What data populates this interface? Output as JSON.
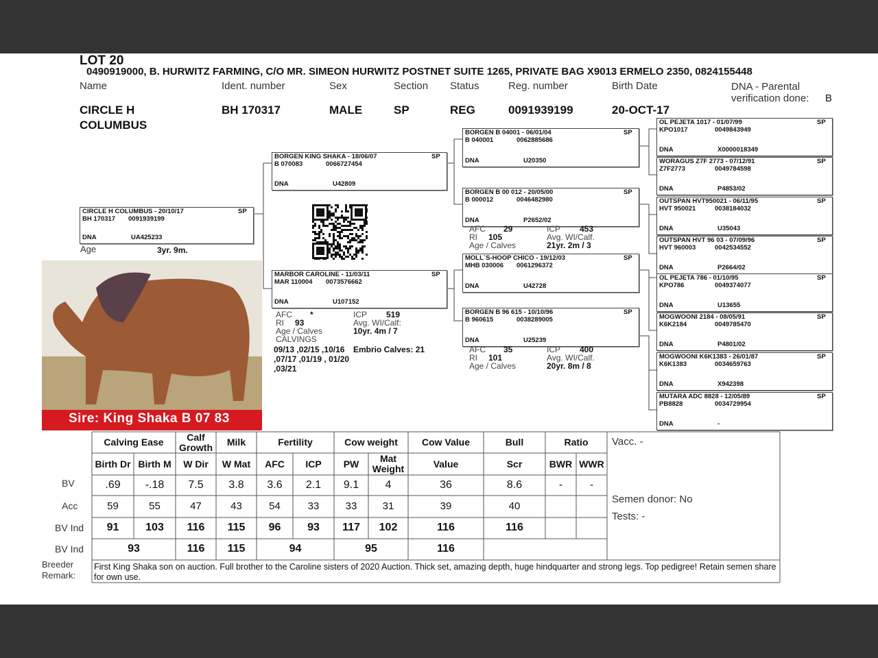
{
  "header": {
    "lot": "LOT 20",
    "owner": "0490919000, B. HURWITZ FARMING, C/O MR. SIMEON HURWITZ POSTNET SUITE 1265, PRIVATE BAG X9013 ERMELO 2350, 0824155448"
  },
  "fields": {
    "labels": [
      "Name",
      "Ident. number",
      "Sex",
      "Section",
      "Status",
      "Reg. number",
      "Birth Date",
      "DNA - Parental verification done:"
    ],
    "values": [
      "CIRCLE H COLUMBUS",
      "BH  170317",
      "MALE",
      "SP",
      "REG",
      "0091939199",
      "20-OCT-17",
      "B"
    ]
  },
  "pedigree": [
    {
      "title": "CIRCLE H COLUMBUS - 20/10/17",
      "section": "SP",
      "ident": "BH  170317",
      "reg": "0091939199",
      "dna_label": "DNA",
      "dna": "UA425233"
    },
    {
      "title": "BORGEN KING SHAKA - 18/06/07",
      "section": "SP",
      "ident": "B  070083",
      "reg": "0066727454",
      "dna_label": "DNA",
      "dna": "U42809"
    },
    {
      "title": "MARBOR CAROLINE - 11/03/11",
      "section": "SP",
      "ident": "MAR 110004",
      "reg": "0073576662",
      "dna_label": "DNA",
      "dna": "U107152"
    },
    {
      "title": "BORGEN B 04001 - 06/01/04",
      "section": "SP",
      "ident": "B  040001",
      "reg": "0062885686",
      "dna_label": "DNA",
      "dna": "U20350"
    },
    {
      "title": "BORGEN B 00 012 - 20/05/00",
      "section": "SP",
      "ident": "B  000012",
      "reg": "0046482980",
      "dna_label": "DNA",
      "dna": "P2652/02"
    },
    {
      "title": "MOLL`S-HOOP CHICO - 19/12/03",
      "section": "SP",
      "ident": "MHB 030006",
      "reg": "0061296372",
      "dna_label": "DNA",
      "dna": "U42728"
    },
    {
      "title": "BORGEN B 96 615 - 10/10/96",
      "section": "SP",
      "ident": "B  960615",
      "reg": "0038289005",
      "dna_label": "DNA",
      "dna": "U25239"
    },
    {
      "title": "OL PEJETA 1017 - 01/07/99",
      "section": "SP",
      "ident": "KPO1017",
      "reg": "0049843949",
      "dna_label": "DNA",
      "dna": "X0000018349"
    },
    {
      "title": "WORAGUS Z7F 2773 - 07/12/91",
      "section": "SP",
      "ident": "Z7F2773",
      "reg": "0049784598",
      "dna_label": "DNA",
      "dna": "P4853/02"
    },
    {
      "title": "OUTSPAN HVT950021 - 06/11/95",
      "section": "SP",
      "ident": "HVT 950021",
      "reg": "0038184032",
      "dna_label": "DNA",
      "dna": "U35043"
    },
    {
      "title": "OUTSPAN HVT 96 03 - 07/09/96",
      "section": "SP",
      "ident": "HVT 960003",
      "reg": "0042534552",
      "dna_label": "DNA",
      "dna": "P2664/02"
    },
    {
      "title": "OL PEJETA 786 - 01/10/95",
      "section": "SP",
      "ident": "KPO786",
      "reg": "0049374077",
      "dna_label": "DNA",
      "dna": "U13655"
    },
    {
      "title": "MOGWOONI 2184 - 08/05/91",
      "section": "SP",
      "ident": "K6K2184",
      "reg": "0049785470",
      "dna_label": "DNA",
      "dna": "P4801/02"
    },
    {
      "title": "MOGWOONI K6K1383 - 26/01/87",
      "section": "SP",
      "ident": "K6K1383",
      "reg": "0034659763",
      "dna_label": "DNA",
      "dna": "X942398"
    },
    {
      "title": "MUTARA ADC 8828 - 12/05/89",
      "section": "SP",
      "ident": "PB8828",
      "reg": "0034729954",
      "dna_label": "DNA",
      "dna": "-"
    }
  ],
  "age": {
    "label": "Age",
    "value": "3yr. 9m."
  },
  "stats": [
    {
      "afc_label": "AFC",
      "afc": "*",
      "icp_label": "ICP",
      "icp": "519",
      "ri_label": "RI",
      "ri": "93",
      "wi_label": "Avg. WI/Calf:",
      "age_label": "Age / Calves",
      "age": "10yr. 4m  / 7",
      "calvings_label": "CALVINGS",
      "calvings": "09/13 ,02/15 ,10/16 ,07/17 ,01/19 , 01/20 ,03/21",
      "embrio": "Embrio Calves: 21"
    },
    {
      "afc_label": "AFC",
      "afc": "29",
      "icp_label": "ICP",
      "icp": "453",
      "ri_label": "RI",
      "ri": "105",
      "wi_label": "Avg. WI/Calf.",
      "age_label": "Age / Calves",
      "age": "21yr. 2m  / 3"
    },
    {
      "afc_label": "AFC",
      "afc": "35",
      "icp_label": "ICP",
      "icp": "400",
      "ri_label": "RI",
      "ri": "101",
      "wi_label": "Avg. WI/Calf.",
      "age_label": "Age / Calves",
      "age": "20yr. 8m  / 8"
    }
  ],
  "photo_caption": "Sire:  King Shaka B 07 83",
  "table": {
    "groups": [
      "Calving Ease",
      "Calf Growth",
      "Milk",
      "Fertility",
      "Cow weight",
      "Cow Value",
      "Bull",
      "Ratio"
    ],
    "columns": [
      "Birth Dr",
      "Birth M",
      "W Dir",
      "W Mat",
      "AFC",
      "ICP",
      "PW",
      "Mat Weight",
      "Value",
      "Scr",
      "BWR",
      "WWR"
    ],
    "row_labels": [
      "BV",
      "Acc",
      "BV Ind",
      "BV Ind"
    ],
    "bv": [
      ".69",
      "-.18",
      "7.5",
      "3.8",
      "3.6",
      "2.1",
      "9.1",
      "4",
      "36",
      "8.6",
      "-",
      "-"
    ],
    "acc": [
      "59",
      "55",
      "47",
      "43",
      "54",
      "33",
      "33",
      "31",
      "39",
      "40"
    ],
    "bv_ind": [
      "91",
      "103",
      "116",
      "115",
      "96",
      "93",
      "117",
      "102",
      "116",
      "116"
    ],
    "bv_ind_group": [
      "93",
      "116",
      "115",
      "94",
      "95",
      "116"
    ],
    "vacc": "Vacc. -",
    "semen": "Semen donor: No",
    "tests": "Tests: -",
    "remark_label": "Breeder Remark:",
    "remark": "First King Shaka son on auction. Full brother to the Caroline sisters of 2020 Auction. Thick set, amazing depth, huge hindquarter and strong legs. Top pedigree! Retain semen share for own use."
  }
}
